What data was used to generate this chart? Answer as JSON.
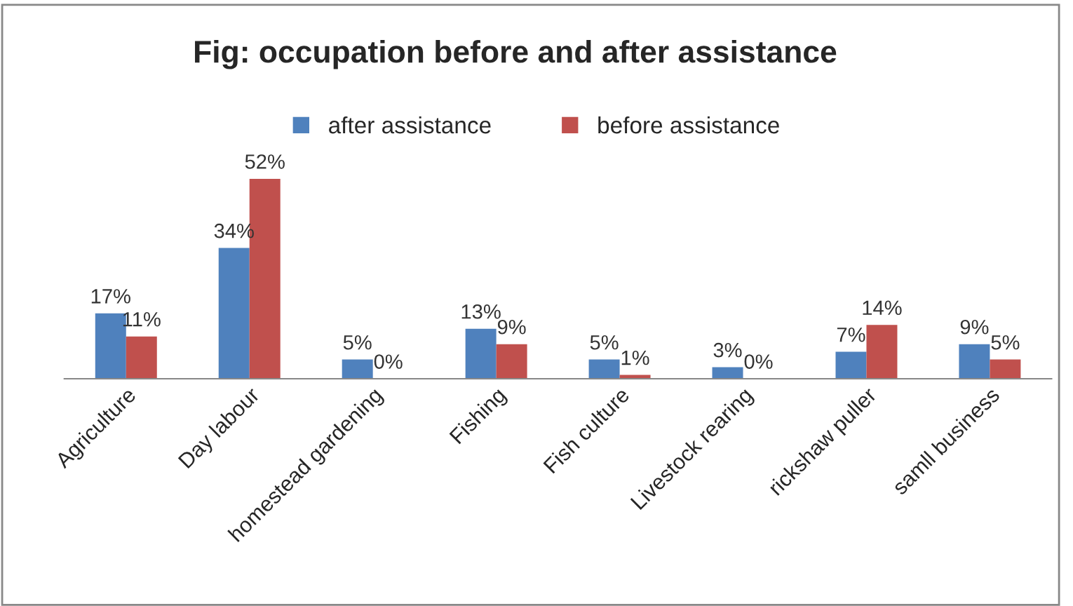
{
  "chart_data": {
    "type": "bar",
    "title": "Fig: occupation before and after assistance",
    "categories": [
      "Agriculture",
      "Day labour",
      "homestead gardening",
      "Fishing",
      "Fish culture",
      "Livestock rearing",
      "rickshaw puller",
      "samll business"
    ],
    "series": [
      {
        "name": "after assistance",
        "color": "#4f81bd",
        "values": [
          17,
          34,
          5,
          13,
          5,
          3,
          7,
          9
        ],
        "value_labels": [
          "17%",
          "34%",
          "5%",
          "13%",
          "5%",
          "3%",
          "7%",
          "9%"
        ]
      },
      {
        "name": "before assistance",
        "color": "#c0504d",
        "values": [
          11,
          52,
          0,
          9,
          1,
          0,
          14,
          5
        ],
        "value_labels": [
          "11%",
          "52%",
          "0%",
          "9%",
          "1%",
          "0%",
          "14%",
          "5%"
        ]
      }
    ],
    "legend": "top",
    "tick_labels": "x"
  }
}
